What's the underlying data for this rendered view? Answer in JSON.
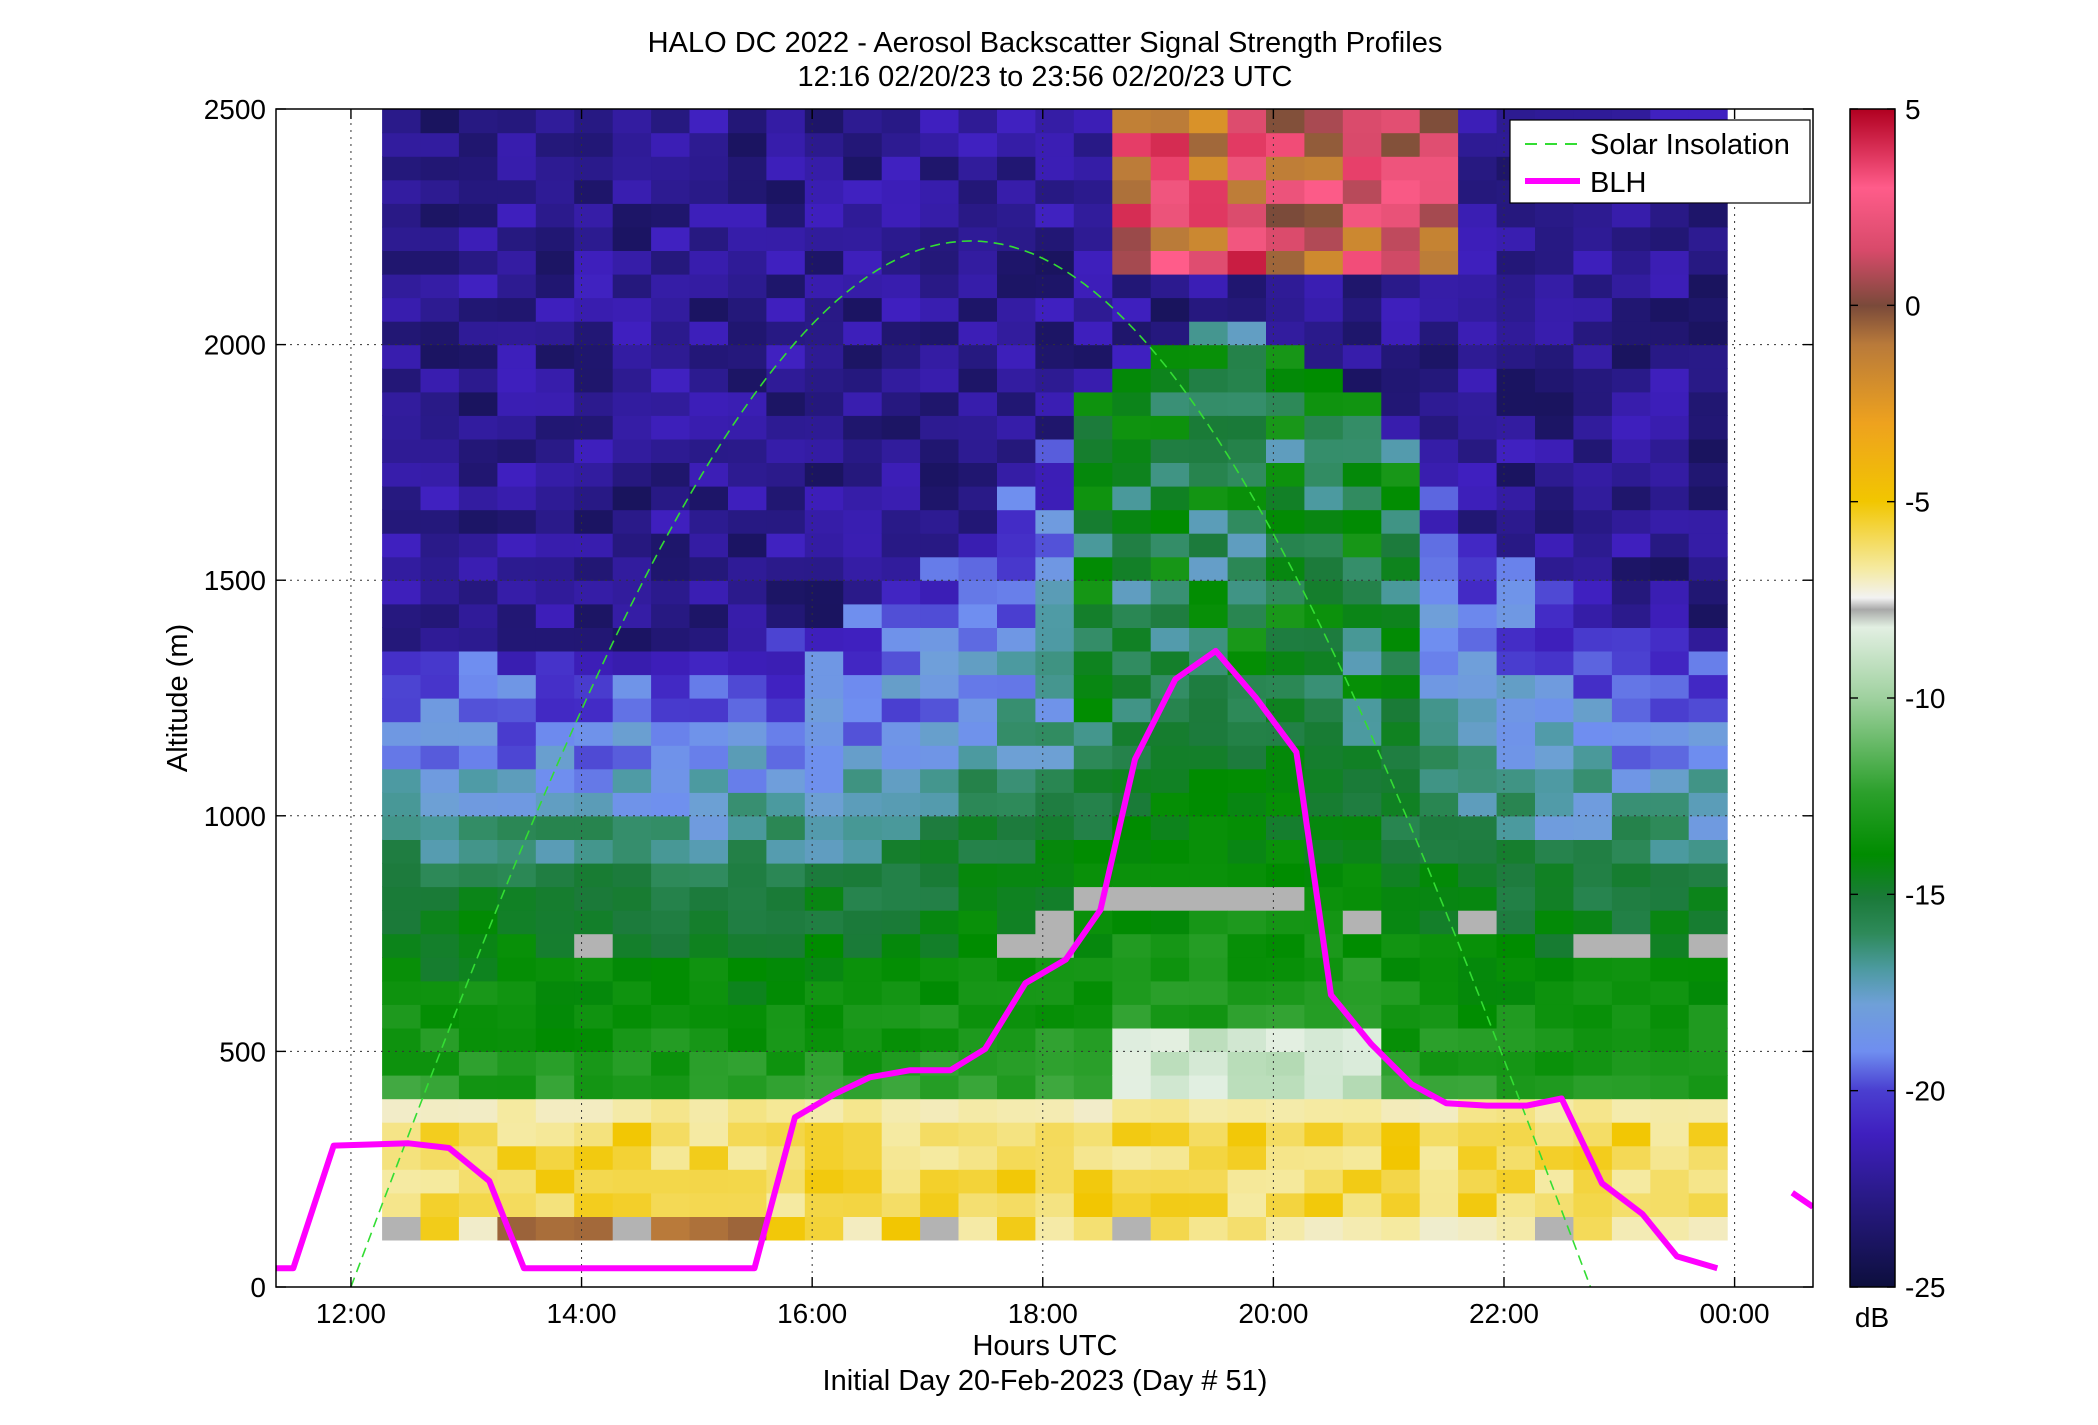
{
  "chart_data": {
    "type": "heatmap",
    "title": "HALO DC 2022 - Aerosol Backscatter Signal Strength Profiles",
    "subtitle": "12:16 02/20/23 to 23:56 02/20/23  UTC",
    "xlabel": "Hours UTC",
    "xlabel2": "Initial Day 20-Feb-2023 (Day # 51)",
    "ylabel": "Altitude (m)",
    "x_ticks": [
      "12:00",
      "14:00",
      "16:00",
      "18:00",
      "20:00",
      "22:00",
      "00:00"
    ],
    "x_tick_values": [
      12,
      14,
      16,
      18,
      20,
      22,
      24
    ],
    "y_ticks": [
      "0",
      "500",
      "1000",
      "1500",
      "2000",
      "2500"
    ],
    "y_tick_values": [
      0,
      500,
      1000,
      1500,
      2000,
      2500
    ],
    "xlim": [
      11.35,
      24.68
    ],
    "ylim": [
      0,
      2500
    ],
    "grid": true,
    "colorbar": {
      "label": "dB",
      "range": [
        -25,
        5
      ],
      "ticks": [
        "5",
        "0",
        "-5",
        "-10",
        "-15",
        "-20",
        "-25"
      ],
      "tick_values": [
        5,
        0,
        -5,
        -10,
        -15,
        -20,
        -25
      ]
    },
    "legend": {
      "placement": "top-right",
      "entries": [
        "Solar Insolation",
        "BLH"
      ]
    },
    "colors": {
      "blh": "#ff00ff",
      "solar": "#33dd33",
      "nodata": "#b3b3b3"
    },
    "heatmap": {
      "x_start": 12.27,
      "x_step": 0.3333,
      "y_start": 100,
      "y_step": 50,
      "columns": 35,
      "rows": 48
    },
    "series": [
      {
        "name": "BLH",
        "x": [
          11.35,
          11.5,
          11.85,
          12.5,
          12.85,
          13.2,
          13.5,
          14.0,
          15.0,
          15.5,
          15.85,
          16.2,
          16.5,
          16.85,
          17.2,
          17.5,
          17.85,
          18.2,
          18.5,
          18.8,
          19.15,
          19.5,
          19.85,
          20.2,
          20.5,
          20.85,
          21.2,
          21.5,
          21.85,
          22.2,
          22.5,
          22.85,
          23.2,
          23.5,
          23.85,
          24.2,
          24.5
        ],
        "y": [
          40,
          40,
          300,
          305,
          295,
          225,
          40,
          40,
          40,
          40,
          360,
          410,
          445,
          460,
          460,
          505,
          645,
          695,
          800,
          1120,
          1290,
          1350,
          1250,
          1135,
          620,
          515,
          430,
          390,
          385,
          385,
          400,
          220,
          155,
          65,
          40,
          null,
          null
        ]
      },
      {
        "name": "Solar Insolation",
        "curve": "sine",
        "x_start": 12.0,
        "x_end": 22.75,
        "peak": 2220
      }
    ]
  }
}
